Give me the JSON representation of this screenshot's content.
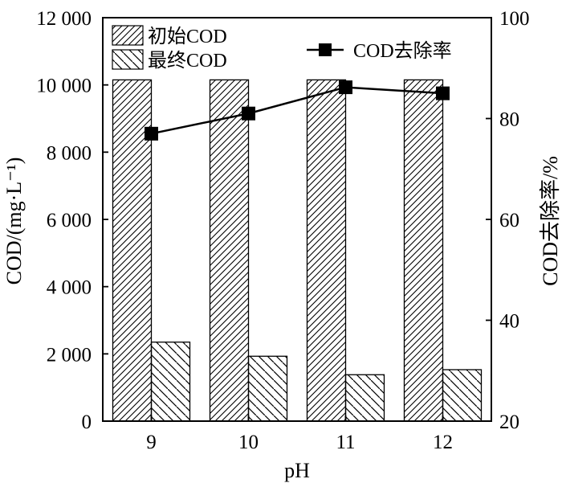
{
  "chart_data": {
    "type": "bar",
    "title": "",
    "categories": [
      "9",
      "10",
      "11",
      "12"
    ],
    "xlabel": "pH",
    "ylabel": "COD/(mg·L⁻¹)",
    "ylabel_right": "COD去除率/%",
    "ylim": [
      0,
      12000
    ],
    "ylim_right": [
      20,
      100
    ],
    "yticks": [
      "0",
      "2 000",
      "4 000",
      "6 000",
      "8 000",
      "10 000",
      "12 000"
    ],
    "yticks_right": [
      "20",
      "40",
      "60",
      "80",
      "100"
    ],
    "legend_position": "top-left and top-right",
    "series": [
      {
        "name": "初始COD",
        "type": "bar",
        "pattern": "dense-hatch",
        "values": [
          10150,
          10150,
          10150,
          10150
        ]
      },
      {
        "name": "最终COD",
        "type": "bar",
        "pattern": "sparse-hatch",
        "values": [
          2350,
          1930,
          1380,
          1530
        ]
      },
      {
        "name": "COD去除率",
        "type": "line",
        "marker": "square",
        "axis": "right",
        "values": [
          77,
          81,
          86.2,
          85
        ]
      }
    ],
    "colors": {
      "line": "#000000",
      "bar_stroke": "#000000",
      "background": "#ffffff"
    }
  }
}
